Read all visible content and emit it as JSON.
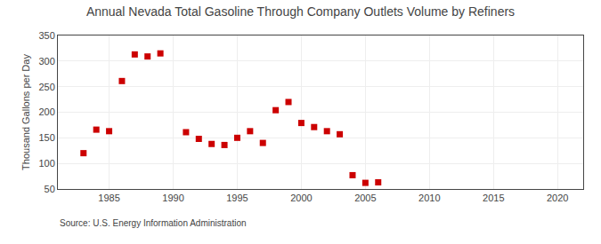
{
  "chart_data": {
    "type": "scatter",
    "title": "Annual Nevada Total Gasoline Through Company Outlets Volume by Refiners",
    "y_label": "Thousand Gallons per Day",
    "annotations": [
      "Source: U.S. Energy Information Administration"
    ],
    "x": [
      1983,
      1984,
      1985,
      1986,
      1987,
      1988,
      1989,
      1991,
      1992,
      1993,
      1994,
      1995,
      1996,
      1997,
      1998,
      1999,
      2000,
      2001,
      2002,
      2003,
      2004,
      2005,
      2006
    ],
    "values": [
      120,
      166,
      163,
      261,
      313,
      309,
      315,
      161,
      148,
      138,
      136,
      150,
      163,
      140,
      204,
      220,
      179,
      171,
      163,
      157,
      77,
      62,
      63
    ],
    "color": "#cc0000",
    "marker": "square",
    "xlim": [
      1981,
      2022
    ],
    "ylim": [
      50,
      350
    ],
    "xticks": [
      1985,
      1990,
      1995,
      2000,
      2005,
      2010,
      2015,
      2020
    ],
    "yticks": [
      50,
      100,
      150,
      200,
      250,
      300,
      350
    ],
    "grid": true
  }
}
